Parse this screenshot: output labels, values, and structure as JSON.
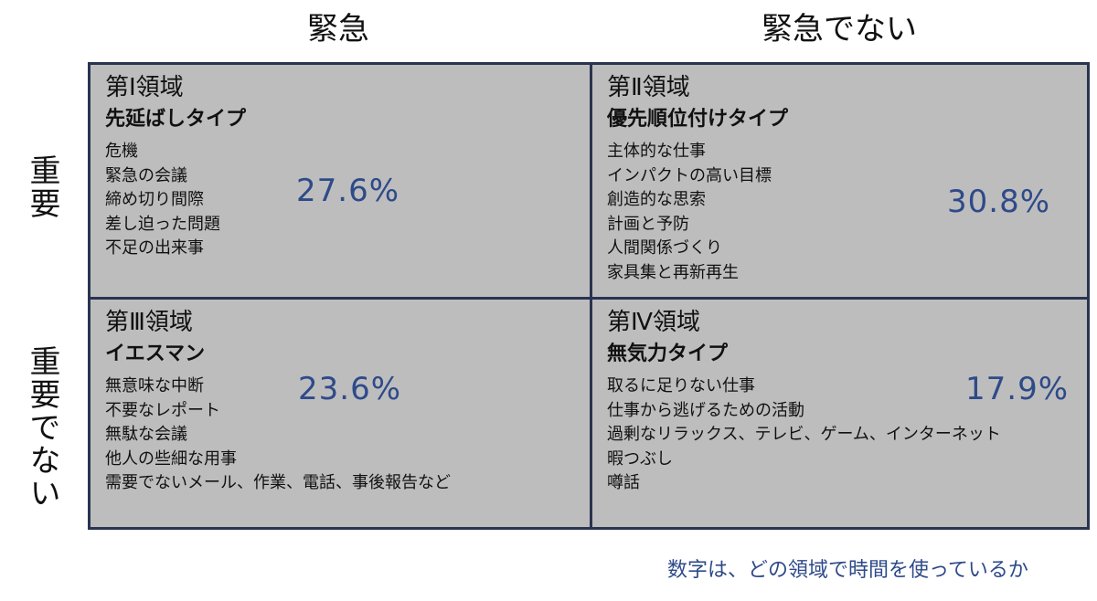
{
  "columns": {
    "urgent": "緊急",
    "not_urgent": "緊急でない"
  },
  "rows": {
    "important": "重要",
    "not_important": "重要でない"
  },
  "quadrants": [
    {
      "title": "第Ⅰ領域",
      "type": "先延ばしタイプ",
      "items": [
        "危機",
        "緊急の会議",
        "締め切り間際",
        "差し迫った問題",
        "不足の出来事"
      ],
      "percent": "27.6%"
    },
    {
      "title": "第Ⅱ領域",
      "type": "優先順位付けタイプ",
      "items": [
        "主体的な仕事",
        "インパクトの高い目標",
        "創造的な思索",
        "計画と予防",
        "人間関係づくり",
        "家具集と再新再生"
      ],
      "percent": "30.8%"
    },
    {
      "title": "第Ⅲ領域",
      "type": "イエスマン",
      "items": [
        "無意味な中断",
        "不要なレポート",
        "無駄な会議",
        "他人の些細な用事",
        "需要でないメール、作業、電話、事後報告など"
      ],
      "percent": "23.6%"
    },
    {
      "title": "第Ⅳ領域",
      "type": "無気力タイプ",
      "items": [
        "取るに足りない仕事",
        "仕事から逃げるための活動",
        "過剰なリラックス、テレビ、ゲーム、インターネット",
        "暇つぶし",
        "噂話"
      ],
      "percent": "17.9%"
    }
  ],
  "footnote": "数字は、どの領域で時間を使っているか",
  "colors": {
    "cell_background": "#bdbdbd",
    "border": "#2a3350",
    "percent_text": "#2e4a8a"
  }
}
